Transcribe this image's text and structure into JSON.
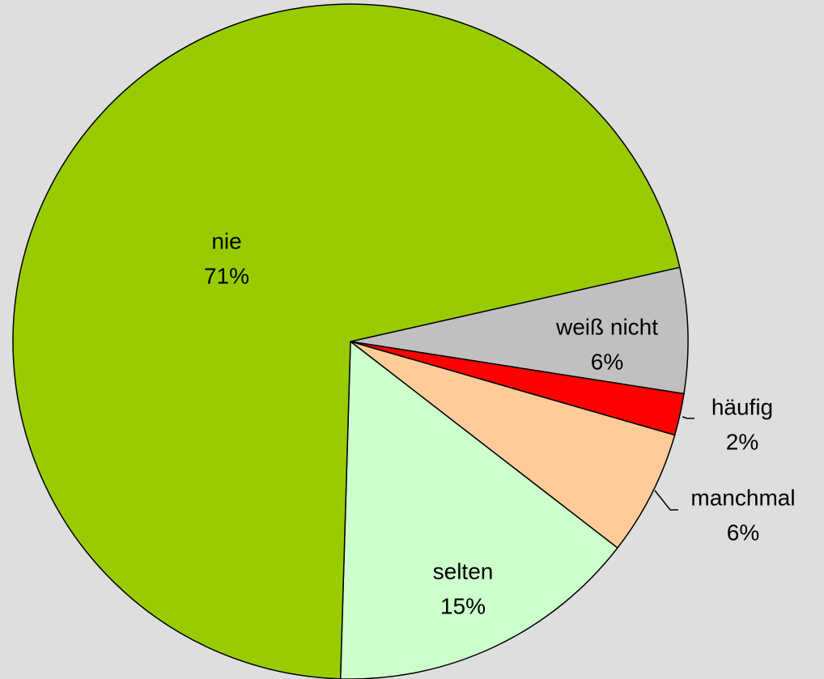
{
  "chart_data": {
    "type": "pie",
    "categories": [
      "weiß nicht",
      "häufig",
      "manchmal",
      "selten",
      "nie"
    ],
    "values": [
      6,
      2,
      6,
      15,
      71
    ],
    "value_labels": [
      "6%",
      "2%",
      "6%",
      "15%",
      "71%"
    ],
    "colors": [
      "#c0c0c0",
      "#ff0000",
      "#ffcc99",
      "#ccffcc",
      "#99cc00"
    ]
  }
}
